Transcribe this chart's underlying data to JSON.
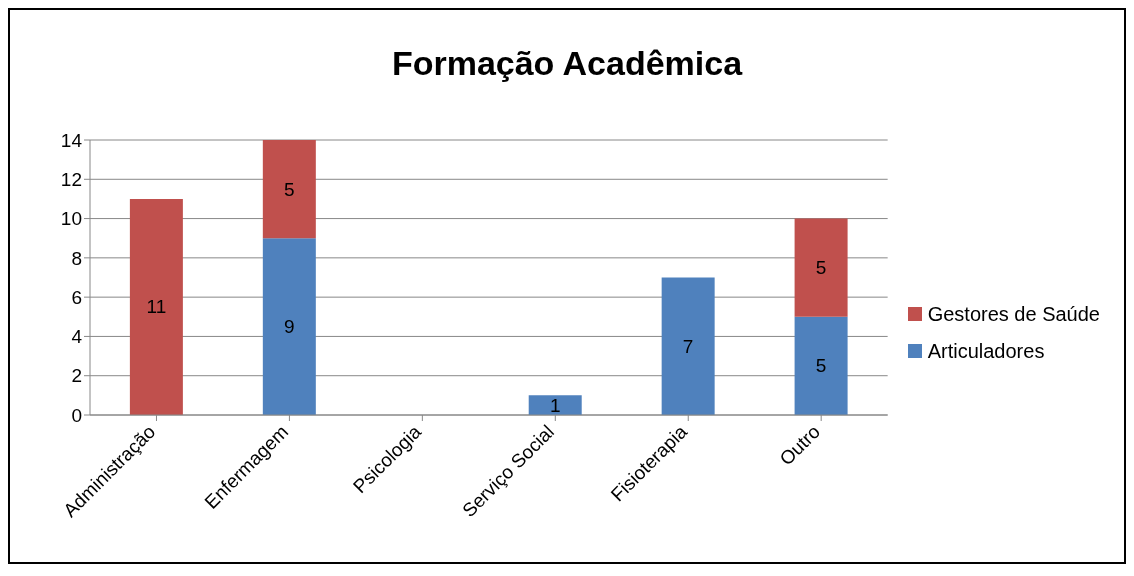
{
  "chart_data": {
    "type": "bar",
    "title": "Formação Acadêmica",
    "categories": [
      "Administração",
      "Enfermagem",
      "Psicologia",
      "Serviço Social",
      "Fisioterapia",
      "Outro"
    ],
    "stacked": true,
    "series": [
      {
        "name": "Articuladores",
        "color": "#4f81bd",
        "values": [
          0,
          9,
          0,
          1,
          7,
          5
        ],
        "value_labels": [
          null,
          "9",
          null,
          "1",
          "7",
          "5"
        ]
      },
      {
        "name": "Gestores de Saúde",
        "color": "#c0504d",
        "values": [
          11,
          5,
          0,
          0,
          0,
          5
        ],
        "value_labels": [
          "11",
          "5",
          null,
          null,
          null,
          "5"
        ]
      }
    ],
    "ylim": [
      0,
      14
    ],
    "yticks": [
      0,
      2,
      4,
      6,
      8,
      10,
      12,
      14
    ],
    "grid": "y",
    "legend": "right"
  }
}
